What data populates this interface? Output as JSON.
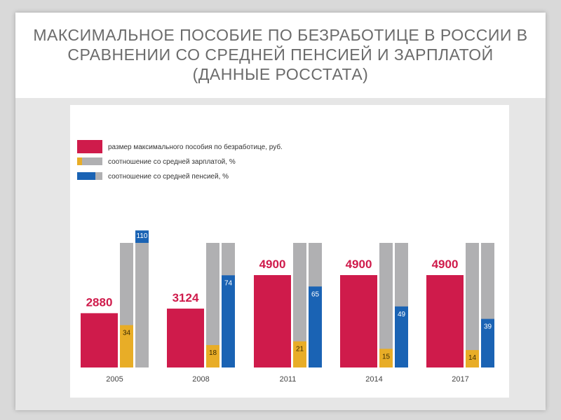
{
  "slide": {
    "title": "Максимальное пособие по безработице в России в сравнении со средней пенсией и зарплатой (данные Росстата)"
  },
  "colors": {
    "benefit": "#cf1b4b",
    "gray": "#b0b0b2",
    "wage": "#e8ad27",
    "pension": "#1a63b4",
    "value_label": "#cf1b4b"
  },
  "chart_data": {
    "type": "bar",
    "categories": [
      "2005",
      "2008",
      "2011",
      "2014",
      "2017"
    ],
    "series": [
      {
        "name": "размер максимального пособия по безработице, руб.",
        "values": [
          2880,
          3124,
          4900,
          4900,
          4900
        ]
      },
      {
        "name": "соотношение со средней зарплатой, %",
        "values": [
          34,
          18,
          21,
          15,
          14
        ]
      },
      {
        "name": "соотношение со средней пенсией, %",
        "values": [
          110,
          74,
          65,
          49,
          39
        ]
      }
    ],
    "percent_full_scale": 100,
    "legend_position": "top-left",
    "grid": false
  }
}
